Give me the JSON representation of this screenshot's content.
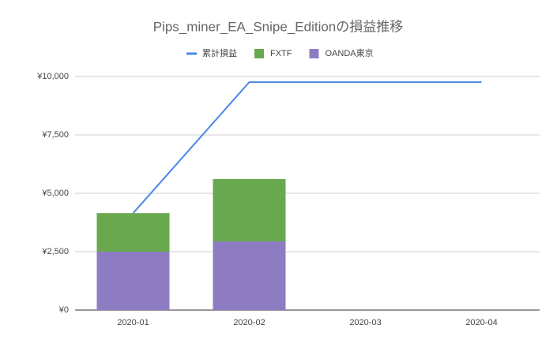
{
  "chart_data": {
    "type": "bar",
    "title": "Pips_miner_EA_Snipe_Editionの損益推移",
    "categories": [
      "2020-01",
      "2020-02",
      "2020-03",
      "2020-04"
    ],
    "series": [
      {
        "name": "累計損益",
        "type": "line",
        "color": "#4a86e8",
        "values": [
          4150,
          9760,
          9760,
          9760
        ]
      },
      {
        "name": "FXTF",
        "type": "bar",
        "color": "#6aa84f",
        "values": [
          1650,
          2670,
          0,
          0
        ]
      },
      {
        "name": "OANDA東京",
        "type": "bar",
        "color": "#8e7cc3",
        "values": [
          2500,
          2940,
          0,
          0
        ]
      }
    ],
    "stacked": true,
    "ylim": [
      0,
      10000
    ],
    "yticks": [
      {
        "value": 0,
        "label": "¥0"
      },
      {
        "value": 2500,
        "label": "¥2,500"
      },
      {
        "value": 5000,
        "label": "¥5,000"
      },
      {
        "value": 7500,
        "label": "¥7,500"
      },
      {
        "value": 10000,
        "label": "¥10,000"
      }
    ],
    "grid": true,
    "legend": "top"
  }
}
